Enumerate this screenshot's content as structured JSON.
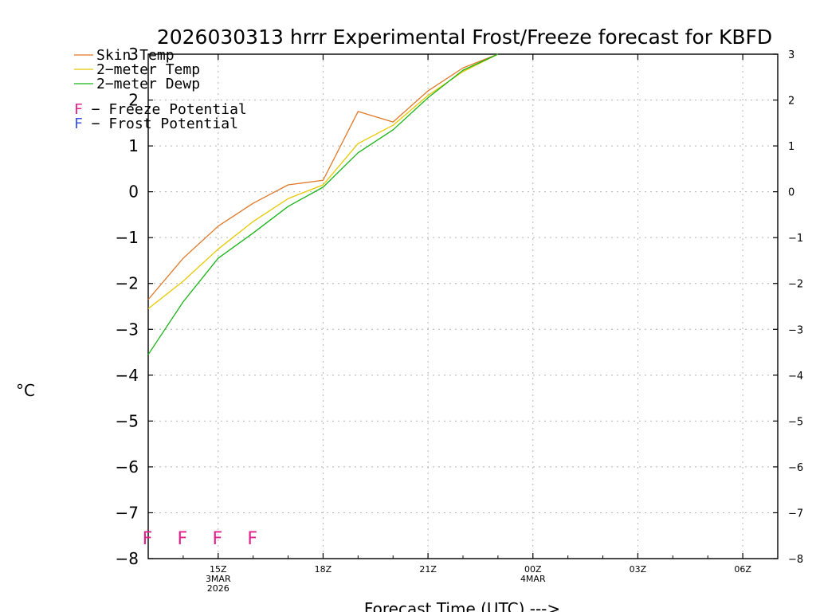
{
  "chart_data": {
    "type": "line",
    "title": "2026030313 hrrr Experimental Frost/Freeze forecast for KBFD",
    "xlabel": "Forecast Time (UTC) --->",
    "ylabel": "°C",
    "ylim": [
      -8,
      3
    ],
    "xlim": [
      0,
      18
    ],
    "yticks": [
      3,
      2,
      1,
      0,
      -1,
      -2,
      -3,
      -4,
      -5,
      -6,
      -7,
      -8
    ],
    "xticks": [
      {
        "x": 2,
        "lines": [
          "15Z",
          "3MAR",
          "2026"
        ]
      },
      {
        "x": 5,
        "lines": [
          "18Z"
        ]
      },
      {
        "x": 8,
        "lines": [
          "21Z"
        ]
      },
      {
        "x": 11,
        "lines": [
          "00Z",
          "4MAR"
        ]
      },
      {
        "x": 14,
        "lines": [
          "03Z"
        ]
      },
      {
        "x": 17,
        "lines": [
          "06Z"
        ]
      }
    ],
    "grid": true,
    "legend_position": "top-left",
    "series": [
      {
        "name": "Skin Temp",
        "label": "Skin Temp",
        "color": "#e07828",
        "x": [
          0,
          1,
          2,
          3,
          4,
          5,
          6,
          7,
          8,
          9,
          10
        ],
        "values": [
          -2.35,
          -1.45,
          -0.75,
          -0.25,
          0.15,
          0.25,
          1.75,
          1.52,
          2.2,
          2.7,
          3.0
        ]
      },
      {
        "name": "2-meter Temp",
        "label": "2−meter Temp",
        "color": "#e8c800",
        "x": [
          0,
          1,
          2,
          3,
          4,
          5,
          6,
          7,
          8,
          9,
          10
        ],
        "values": [
          -2.55,
          -1.95,
          -1.25,
          -0.65,
          -0.15,
          0.15,
          1.05,
          1.45,
          2.1,
          2.62,
          3.0
        ]
      },
      {
        "name": "2-meter Dewp",
        "label": "2−meter Dewp",
        "color": "#18b418",
        "x": [
          0,
          1,
          2,
          3,
          4,
          5,
          6,
          7,
          8,
          9,
          10
        ],
        "values": [
          -3.55,
          -2.4,
          -1.45,
          -0.9,
          -0.32,
          0.1,
          0.85,
          1.35,
          2.05,
          2.65,
          3.0
        ]
      }
    ],
    "notes": [
      {
        "text": "F − Freeze Potential",
        "symbol": "F",
        "rest": " − Freeze Potential",
        "color": "#e0208c"
      },
      {
        "text": "F − Frost Potential",
        "symbol": "F",
        "rest": " − Frost Potential",
        "color": "#3c50f0"
      }
    ],
    "freeze_markers": {
      "symbol": "F",
      "color": "#e0208c",
      "y": -7.5,
      "x": [
        0,
        1,
        2,
        3
      ]
    }
  }
}
